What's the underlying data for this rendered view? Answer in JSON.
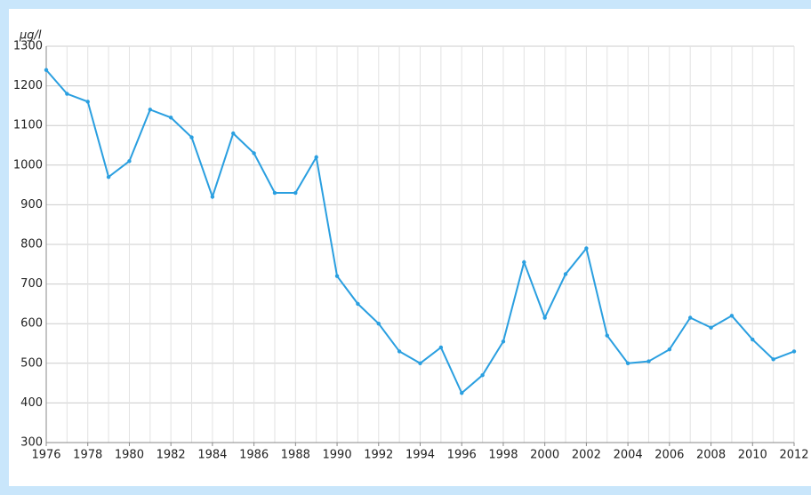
{
  "chart_data": {
    "type": "line",
    "y_label": "μg/l",
    "x": [
      1976,
      1977,
      1978,
      1979,
      1980,
      1981,
      1982,
      1983,
      1984,
      1985,
      1986,
      1987,
      1988,
      1989,
      1990,
      1991,
      1992,
      1993,
      1994,
      1995,
      1996,
      1997,
      1998,
      1999,
      2000,
      2001,
      2002,
      2003,
      2004,
      2005,
      2006,
      2007,
      2008,
      2009,
      2010,
      2011,
      2012
    ],
    "series": [
      {
        "color": "#2a9fe0",
        "values": [
          1240,
          1180,
          1160,
          970,
          1010,
          1140,
          1120,
          1070,
          920,
          1080,
          1030,
          930,
          930,
          1020,
          720,
          650,
          600,
          530,
          500,
          540,
          425,
          470,
          555,
          755,
          615,
          725,
          790,
          570,
          500,
          505,
          535,
          615,
          590,
          620,
          560,
          510,
          530
        ]
      }
    ],
    "xlim": [
      1976,
      2012
    ],
    "xticks": [
      1976,
      1978,
      1980,
      1982,
      1984,
      1986,
      1988,
      1990,
      1992,
      1994,
      1996,
      1998,
      2000,
      2002,
      2004,
      2006,
      2008,
      2010,
      2012
    ],
    "ylim": [
      300,
      1300
    ],
    "yticks": [
      300,
      400,
      500,
      600,
      700,
      800,
      900,
      1000,
      1100,
      1200,
      1300
    ],
    "grid": true
  }
}
